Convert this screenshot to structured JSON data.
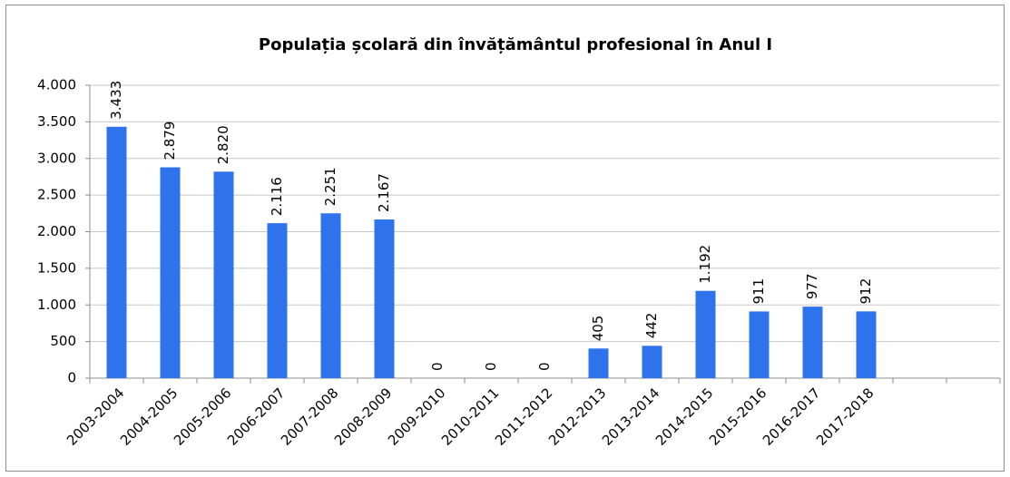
{
  "chart_data": {
    "type": "bar",
    "title": "Populația școlară din învățământul profesional  în Anul I",
    "categories": [
      "2003-2004",
      "2004-2005",
      "2005-2006",
      "2006-2007",
      "2007-2008",
      "2008-2009",
      "2009-2010",
      "2010-2011",
      "2011-2012",
      "2012-2013",
      "2013-2014",
      "2014-2015",
      "2015-2016",
      "2016-2017",
      "2017-2018",
      null,
      null
    ],
    "values": [
      3433,
      2879,
      2820,
      2116,
      2251,
      2167,
      0,
      0,
      0,
      405,
      442,
      1192,
      911,
      977,
      912,
      null,
      null
    ],
    "value_labels": [
      "3.433",
      "2.879",
      "2.820",
      "2.116",
      "2.251",
      "2.167",
      "0",
      "0",
      "0",
      "405",
      "442",
      "1.192",
      "911",
      "977",
      "912",
      null,
      null
    ],
    "color": "#2f73ec",
    "ylim": [
      0,
      4000
    ],
    "yticks": [
      0,
      500,
      {
        "value": 1000,
        "label": "1.000"
      },
      {
        "value": 1500,
        "label": "1.500"
      },
      {
        "value": 2000,
        "label": "2.000"
      },
      {
        "value": 2500,
        "label": "2.500"
      },
      {
        "value": 3000,
        "label": "3.000"
      },
      {
        "value": 3500,
        "label": "3.500"
      },
      {
        "value": 4000,
        "label": "4.000"
      }
    ],
    "grid": true
  }
}
